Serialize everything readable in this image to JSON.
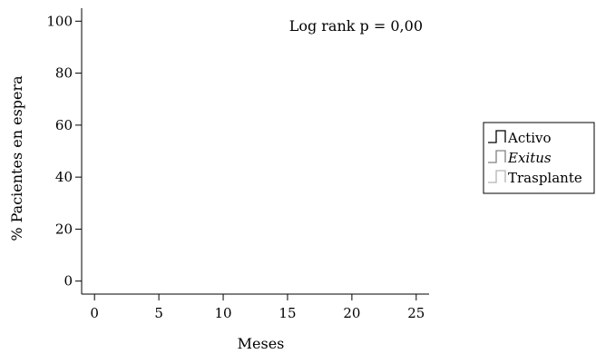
{
  "chart_data": {
    "type": "line",
    "title": "",
    "xlabel": "Meses",
    "ylabel": "% Pacientes en espera",
    "xlim": [
      -1,
      26
    ],
    "ylim": [
      -5,
      105
    ],
    "x_ticks": [
      0,
      5,
      10,
      15,
      20,
      25
    ],
    "y_ticks": [
      0,
      20,
      40,
      60,
      80,
      100
    ],
    "grid": false,
    "annotation": "Log rank p = 0,00",
    "legend_position": "right",
    "series": [
      {
        "name": "Activo",
        "style": "normal",
        "color": "#000000",
        "points": []
      },
      {
        "name": "Exitus",
        "style": "italic",
        "color": "#808080",
        "points": []
      },
      {
        "name": "Trasplante",
        "style": "normal",
        "color": "#b3b3b3",
        "points": []
      }
    ]
  }
}
